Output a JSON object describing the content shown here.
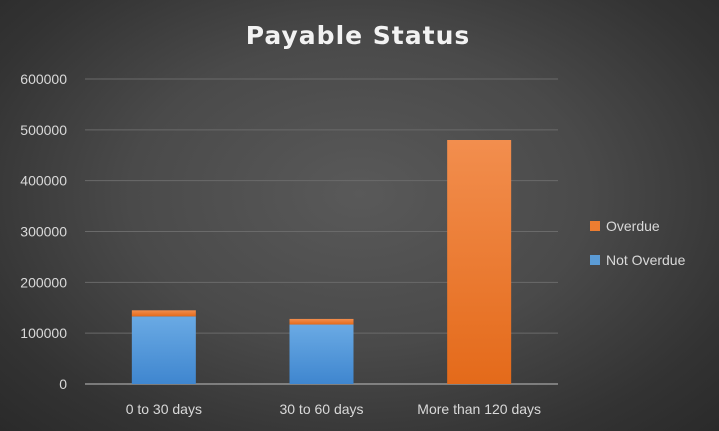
{
  "chart_data": {
    "type": "bar",
    "stacked": true,
    "title": "Payable Status",
    "xlabel": "",
    "ylabel": "",
    "categories": [
      "0 to 30 days",
      "30 to 60 days",
      "More than 120 days"
    ],
    "series": [
      {
        "name": "Not Overdue",
        "values": [
          133000,
          117000,
          0
        ],
        "color": "#5b9bd5"
      },
      {
        "name": "Overdue",
        "values": [
          12000,
          11000,
          480000
        ],
        "color": "#ed7d31"
      }
    ],
    "ylim": [
      0,
      600000
    ],
    "yticks": [
      0,
      100000,
      200000,
      300000,
      400000,
      500000,
      600000
    ],
    "ytick_labels": [
      "0",
      "100000",
      "200000",
      "300000",
      "400000",
      "500000",
      "600000"
    ],
    "grid": true,
    "legend_position": "right"
  }
}
